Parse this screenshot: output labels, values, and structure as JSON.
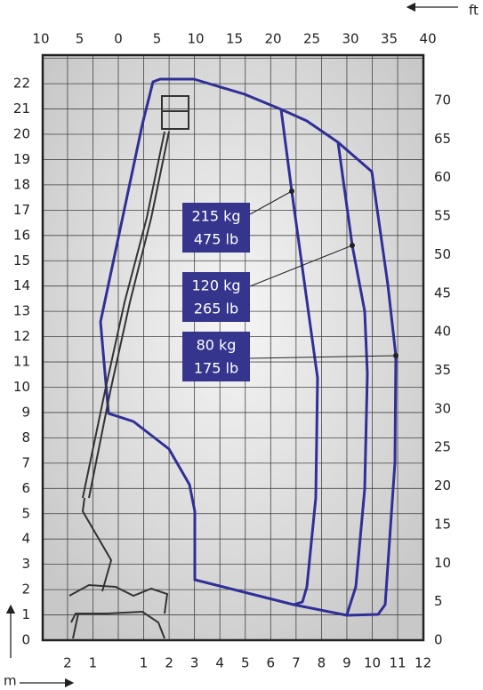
{
  "units": {
    "feet": "ft",
    "meters": "m"
  },
  "axes": {
    "top": [
      "10",
      "5",
      "0",
      "5",
      "10",
      "15",
      "20",
      "25",
      "30",
      "35",
      "40"
    ],
    "left": [
      "0",
      "1",
      "2",
      "3",
      "4",
      "5",
      "6",
      "7",
      "8",
      "9",
      "10",
      "11",
      "12",
      "13",
      "14",
      "15",
      "16",
      "17",
      "18",
      "19",
      "20",
      "21",
      "22"
    ],
    "right": [
      "0",
      "5",
      "10",
      "15",
      "20",
      "25",
      "30",
      "35",
      "40",
      "45",
      "50",
      "55",
      "60",
      "65",
      "70"
    ],
    "bottom": [
      "2",
      "1",
      "1",
      "2",
      "3",
      "4",
      "5",
      "6",
      "7",
      "8",
      "9",
      "10",
      "11",
      "12"
    ]
  },
  "loads": [
    {
      "kg": "215 kg",
      "lb": "475 lb"
    },
    {
      "kg": "120 kg",
      "lb": "265 lb"
    },
    {
      "kg": "80 kg",
      "lb": "175 lb"
    }
  ]
}
